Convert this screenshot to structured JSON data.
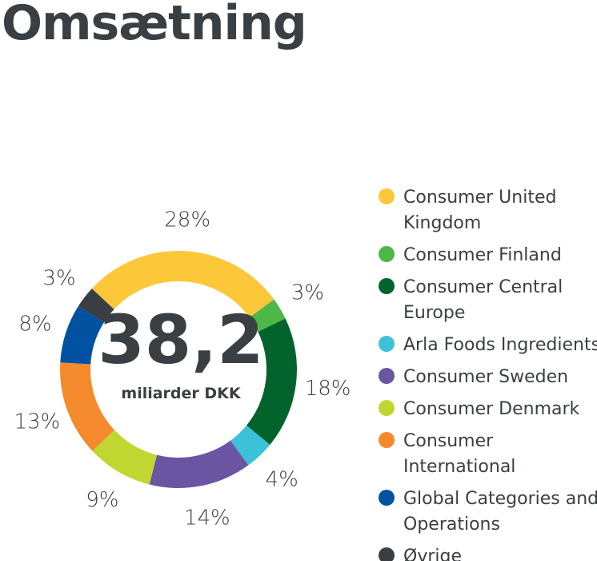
{
  "title": "Omsætning",
  "chart_data": {
    "type": "pie",
    "center_value": "38,2",
    "center_unit": "miliarder DKK",
    "slices": [
      {
        "label": "Consumer United Kingdom",
        "value": 28,
        "display": "28%",
        "color": "#fcc738"
      },
      {
        "label": "Consumer Finland",
        "value": 3,
        "display": "3%",
        "color": "#4db848"
      },
      {
        "label": "Consumer Central Europe",
        "value": 18,
        "display": "18%",
        "color": "#02642c"
      },
      {
        "label": "Arla Foods Ingredients",
        "value": 4,
        "display": "4%",
        "color": "#3bc2d9"
      },
      {
        "label": "Consumer Sweden",
        "value": 14,
        "display": "14%",
        "color": "#6a55a3"
      },
      {
        "label": "Consumer Denmark",
        "value": 9,
        "display": "9%",
        "color": "#bfd730"
      },
      {
        "label": "Consumer International",
        "value": 13,
        "display": "13%",
        "color": "#f58a2d"
      },
      {
        "label": "Global Categories and Operations",
        "value": 8,
        "display": "8%",
        "color": "#0152a1"
      },
      {
        "label": "Øvrige",
        "value": 3,
        "display": "3%",
        "color": "#393e42"
      }
    ]
  },
  "legend": [
    {
      "lines": [
        "Consumer United",
        "Kingdom"
      ],
      "color": "#fcc738"
    },
    {
      "lines": [
        "Consumer Finland"
      ],
      "color": "#4db848"
    },
    {
      "lines": [
        "Consumer Central",
        "Europe"
      ],
      "color": "#02642c"
    },
    {
      "lines": [
        "Arla Foods Ingredients"
      ],
      "color": "#3bc2d9"
    },
    {
      "lines": [
        "Consumer Sweden"
      ],
      "color": "#6a55a3"
    },
    {
      "lines": [
        "Consumer Denmark"
      ],
      "color": "#bfd730"
    },
    {
      "lines": [
        "Consumer",
        "International"
      ],
      "color": "#f58a2d"
    },
    {
      "lines": [
        "Global Categories and",
        "Operations"
      ],
      "color": "#0152a1"
    },
    {
      "lines": [
        "Øvrige"
      ],
      "color": "#393e42"
    }
  ]
}
